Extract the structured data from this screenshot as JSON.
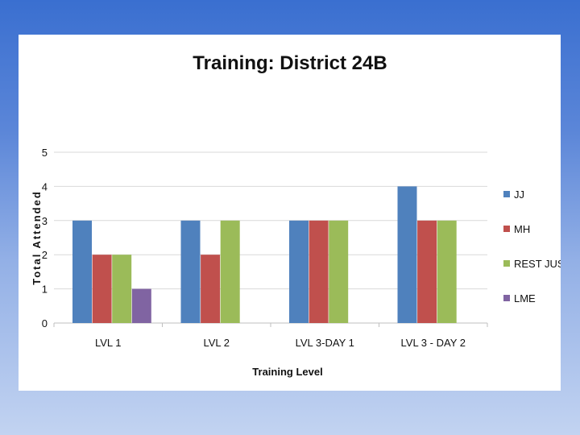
{
  "chart_data": {
    "type": "bar",
    "title": "Training: District 24B",
    "xlabel": "Training Level",
    "ylabel": "Total Attended",
    "ylim": [
      0,
      5
    ],
    "yticks": [
      0,
      1,
      2,
      3,
      4,
      5
    ],
    "grid": true,
    "legend_position": "right",
    "categories": [
      "LVL 1",
      "LVL 2",
      "LVL 3-DAY 1",
      "LVL 3 - DAY 2"
    ],
    "series": [
      {
        "name": "JJ",
        "color": "#4f81bd",
        "values": [
          3,
          3,
          3,
          4
        ]
      },
      {
        "name": "MH",
        "color": "#c0504d",
        "values": [
          2,
          2,
          3,
          3
        ]
      },
      {
        "name": "REST JUST",
        "color": "#9bbb59",
        "values": [
          2,
          3,
          3,
          3
        ]
      },
      {
        "name": "LME",
        "color": "#8064a2",
        "values": [
          1,
          0,
          0,
          0
        ]
      }
    ]
  }
}
